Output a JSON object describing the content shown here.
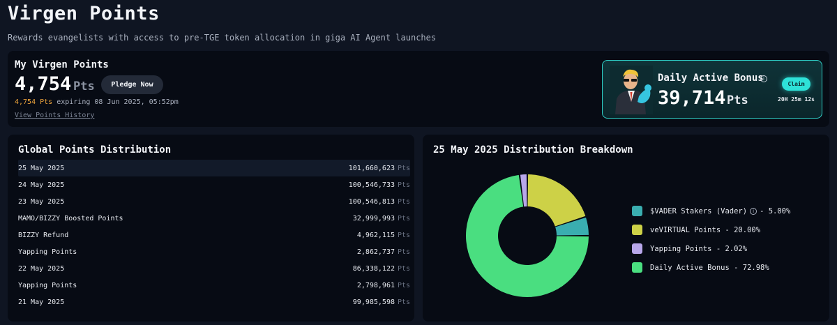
{
  "page": {
    "title": "Virgen Points",
    "subtitle": "Rewards evangelists with access to pre-TGE token allocation in giga AI Agent launches"
  },
  "my_points": {
    "title": "My Virgen Points",
    "value": "4,754",
    "unit": "Pts",
    "pledge_label": "Pledge Now",
    "expiring_amount": "4,754 Pts",
    "expiring_text": " expiring 08 Jun 2025, 05:52pm",
    "history_link": "View Points History"
  },
  "daily_bonus": {
    "title": "Daily Active Bonus",
    "info_glyph": "i",
    "value": "39,714",
    "unit": "Pts",
    "claim_label": "Claim",
    "countdown": "20H 25m 12s",
    "avatar_icon": "muscle-man-avatar-icon"
  },
  "global": {
    "title": "Global Points Distribution",
    "unit": "Pts",
    "rows": [
      {
        "label": "25 May 2025",
        "value": "101,660,623"
      },
      {
        "label": "24 May 2025",
        "value": "100,546,733"
      },
      {
        "label": "23 May 2025",
        "value": "100,546,813"
      },
      {
        "label": "MAMO/BIZZY Boosted Points",
        "value": "32,999,993"
      },
      {
        "label": "BIZZY Refund",
        "value": "4,962,115"
      },
      {
        "label": "Yapping Points",
        "value": "2,862,737"
      },
      {
        "label": "22 May 2025",
        "value": "86,338,122"
      },
      {
        "label": "Yapping Points",
        "value": "2,798,961"
      },
      {
        "label": "21 May 2025",
        "value": "99,985,598"
      }
    ]
  },
  "breakdown": {
    "title": "25 May 2025 Distribution Breakdown",
    "legend": [
      {
        "label": "$VADER Stakers (Vader)",
        "suffix": "- 5.00%",
        "info": "i"
      },
      {
        "label": "veVIRTUAL Points - 20.00%"
      },
      {
        "label": "Yapping Points - 2.02%"
      },
      {
        "label": "Daily Active Bonus - 72.98%"
      }
    ]
  },
  "chart_data": {
    "type": "pie",
    "title": "25 May 2025 Distribution Breakdown",
    "categories": [
      "veVIRTUAL Points",
      "$VADER Stakers (Vader)",
      "Daily Active Bonus",
      "Yapping Points"
    ],
    "values": [
      20.0,
      5.0,
      72.98,
      2.02
    ],
    "colors": [
      "#cdd147",
      "#3aaeb0",
      "#4ade80",
      "#b8a7ea"
    ],
    "donut": true,
    "legend_position": "right"
  },
  "colors": {
    "background": "#0f1522",
    "card": "#070b14",
    "accent_teal": "#2ee2d8",
    "expiry_orange": "#e9a23b"
  }
}
